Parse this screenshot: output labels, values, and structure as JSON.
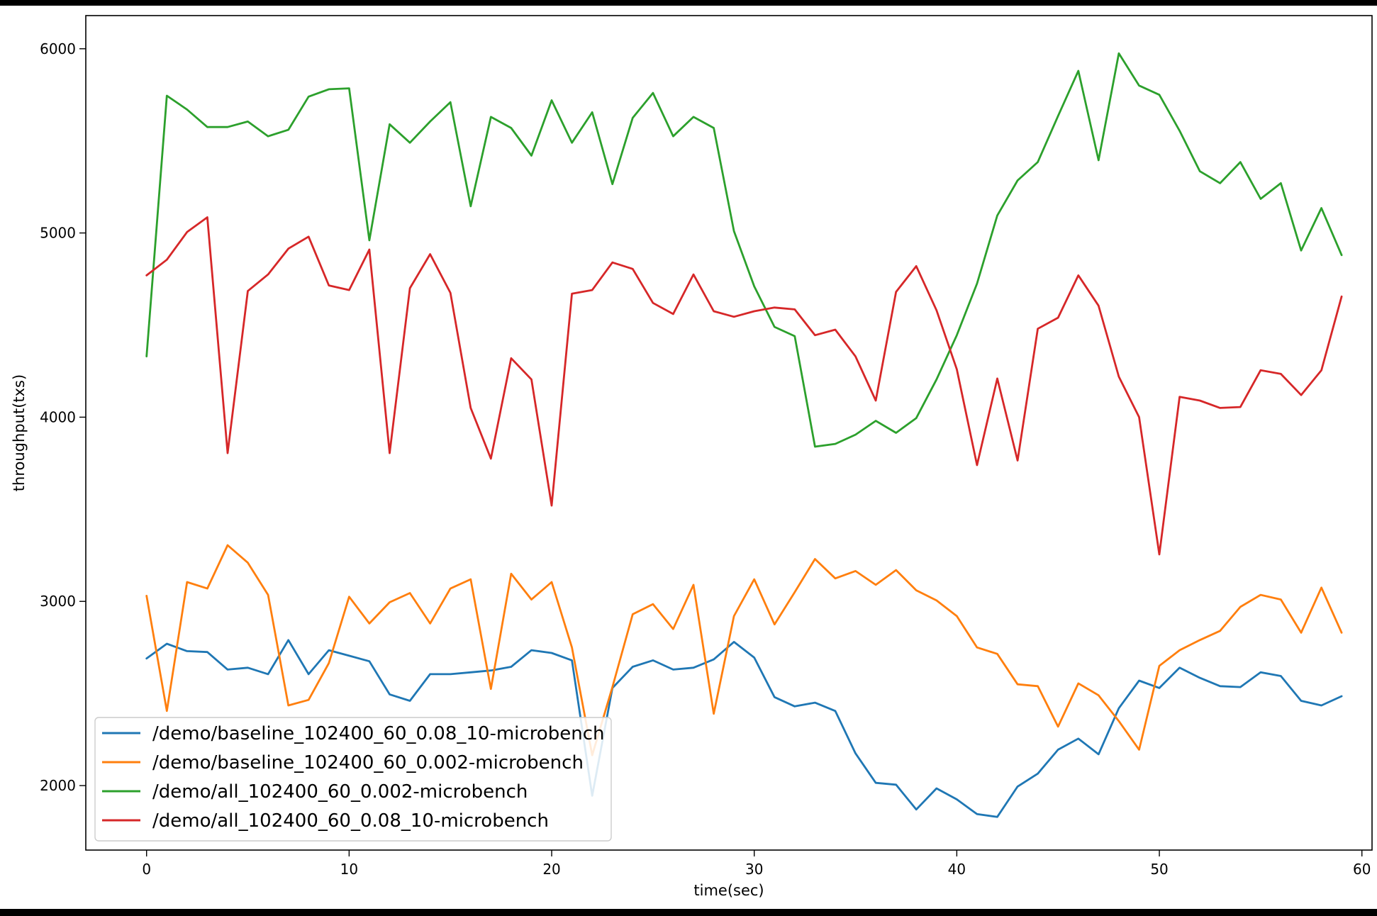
{
  "chart_data": {
    "type": "line",
    "xlabel": "time(sec)",
    "ylabel": "throughput(txs)",
    "xlim": [
      -3,
      60.5
    ],
    "ylim": [
      1650,
      6180
    ],
    "xticks": [
      0,
      10,
      20,
      30,
      40,
      50,
      60
    ],
    "yticks": [
      2000,
      3000,
      4000,
      5000,
      6000
    ],
    "grid": false,
    "legend_position": "lower-left",
    "x": [
      0,
      1,
      2,
      3,
      4,
      5,
      6,
      7,
      8,
      9,
      10,
      11,
      12,
      13,
      14,
      15,
      16,
      17,
      18,
      19,
      20,
      21,
      22,
      23,
      24,
      25,
      26,
      27,
      28,
      29,
      30,
      31,
      32,
      33,
      34,
      35,
      36,
      37,
      38,
      39,
      40,
      41,
      42,
      43,
      44,
      45,
      46,
      47,
      48,
      49,
      50,
      51,
      52,
      53,
      54,
      55,
      56,
      57,
      58,
      59
    ],
    "series": [
      {
        "name": "/demo/baseline_102400_60_0.08_10-microbench",
        "color": "#1f77b4",
        "values": [
          2690,
          2770,
          2730,
          2725,
          2630,
          2640,
          2605,
          2790,
          2605,
          2735,
          2705,
          2675,
          2495,
          2460,
          2605,
          2605,
          2615,
          2625,
          2645,
          2735,
          2720,
          2680,
          1945,
          2530,
          2645,
          2680,
          2630,
          2640,
          2685,
          2780,
          2695,
          2480,
          2430,
          2450,
          2405,
          2175,
          2015,
          2005,
          1870,
          1985,
          1925,
          1845,
          1830,
          1995,
          2065,
          2195,
          2255,
          2170,
          2420,
          2570,
          2530,
          2640,
          2585,
          2540,
          2535,
          2615,
          2595,
          2460,
          2435,
          2485
        ]
      },
      {
        "name": "/demo/baseline_102400_60_0.002-microbench",
        "color": "#ff7f0e",
        "values": [
          3030,
          2405,
          3105,
          3070,
          3305,
          3210,
          3035,
          2435,
          2465,
          2665,
          3025,
          2880,
          2995,
          3045,
          2880,
          3070,
          3120,
          2525,
          3150,
          3010,
          3105,
          2750,
          2165,
          2535,
          2930,
          2985,
          2850,
          3090,
          2390,
          2920,
          3120,
          2875,
          3050,
          3230,
          3125,
          3165,
          3090,
          3170,
          3060,
          3005,
          2920,
          2750,
          2715,
          2550,
          2540,
          2320,
          2555,
          2490,
          2350,
          2195,
          2650,
          2735,
          2790,
          2840,
          2970,
          3035,
          3010,
          2830,
          3075,
          2830
        ]
      },
      {
        "name": "/demo/all_102400_60_0.002-microbench",
        "color": "#2ca02c",
        "values": [
          4330,
          5745,
          5670,
          5575,
          5575,
          5605,
          5525,
          5560,
          5740,
          5780,
          5785,
          4960,
          5590,
          5490,
          5605,
          5710,
          5145,
          5630,
          5570,
          5420,
          5720,
          5490,
          5655,
          5265,
          5625,
          5760,
          5525,
          5630,
          5570,
          5010,
          4710,
          4490,
          4440,
          3840,
          3855,
          3905,
          3980,
          3915,
          3995,
          4205,
          4445,
          4725,
          5095,
          5285,
          5385,
          5635,
          5880,
          5395,
          5975,
          5800,
          5750,
          5555,
          5335,
          5270,
          5385,
          5185,
          5270,
          4905,
          5135,
          4880
        ]
      },
      {
        "name": "/demo/all_102400_60_0.08_10-microbench",
        "color": "#d62728",
        "values": [
          4770,
          4855,
          5005,
          5085,
          3805,
          4685,
          4775,
          4915,
          4980,
          4715,
          4690,
          4910,
          3805,
          4700,
          4885,
          4675,
          4050,
          3775,
          4320,
          4205,
          3520,
          4670,
          4690,
          4840,
          4805,
          4620,
          4560,
          4775,
          4575,
          4545,
          4575,
          4595,
          4585,
          4445,
          4475,
          4330,
          4090,
          4680,
          4820,
          4580,
          4260,
          3740,
          4210,
          3765,
          4480,
          4540,
          4770,
          4605,
          4220,
          4000,
          3255,
          4110,
          4090,
          4050,
          4055,
          4255,
          4235,
          4120,
          4255,
          4655
        ]
      }
    ]
  }
}
